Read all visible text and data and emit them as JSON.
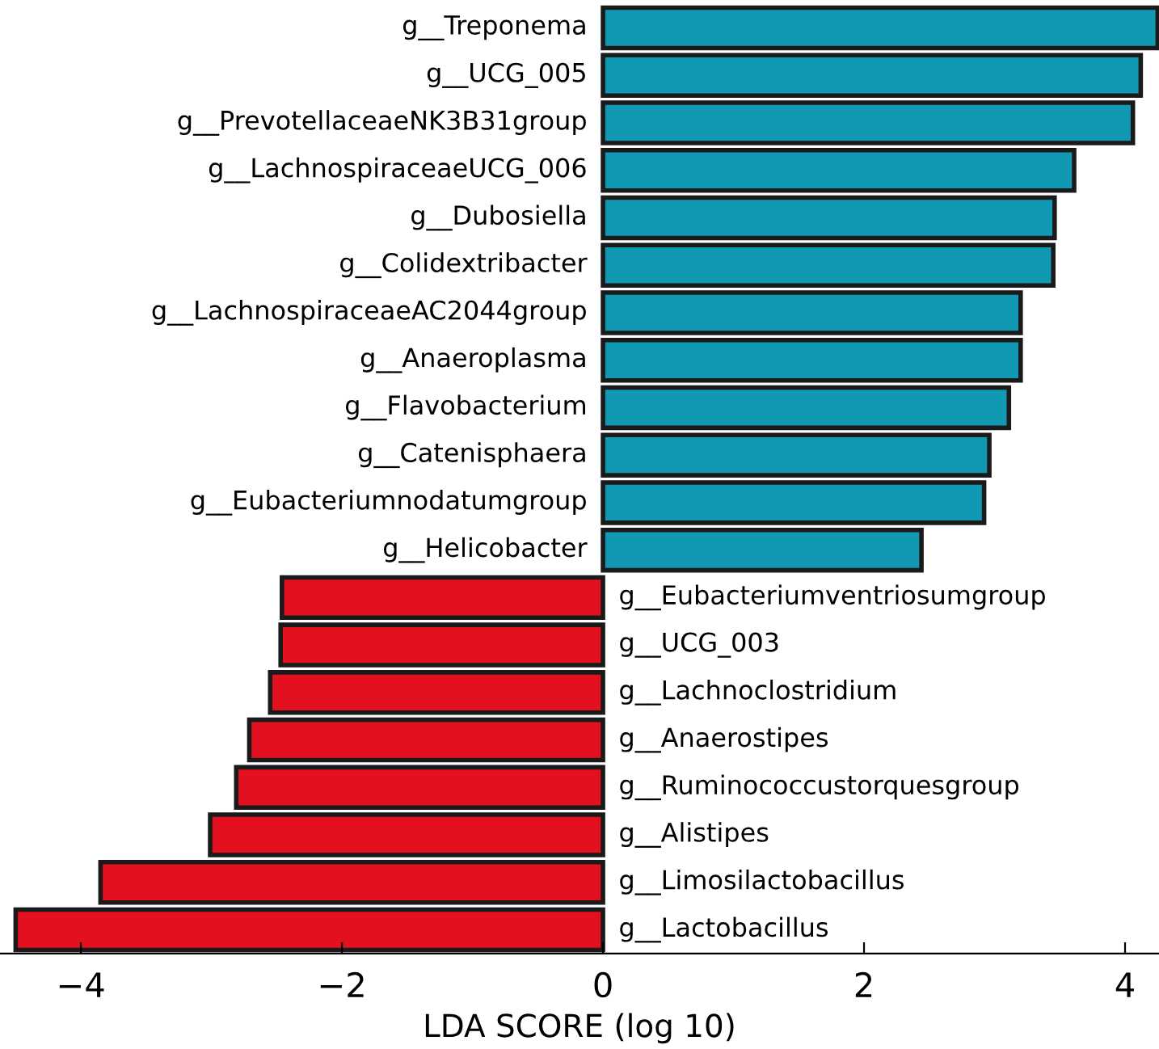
{
  "chart_data": {
    "type": "bar",
    "orientation": "horizontal",
    "xlabel": "LDA SCORE (log 10)",
    "categories": [
      "g__Treponema",
      "g__UCG_005",
      "g__PrevotellaceaeNK3B31group",
      "g__LachnospiraceaeUCG_006",
      "g__Dubosiella",
      "g__Colidextribacter",
      "g__LachnospiraceaeAC2044group",
      "g__Anaeroplasma",
      "g__Flavobacterium",
      "g__Catenisphaera",
      "g__Eubacteriumnodatumgroup",
      "g__Helicobacter",
      "g__Eubacteriumventriosumgroup",
      "g__UCG_003",
      "g__Lachnoclostridium",
      "g__Anaerostipes",
      "g__Ruminococcustorquesgroup",
      "g__Alistipes",
      "g__Limosilactobacillus",
      "g__Lactobacillus"
    ],
    "values": [
      4.25,
      4.12,
      4.06,
      3.61,
      3.46,
      3.45,
      3.2,
      3.2,
      3.11,
      2.96,
      2.92,
      2.44,
      -2.46,
      -2.47,
      -2.55,
      -2.71,
      -2.81,
      -3.01,
      -3.85,
      -4.5
    ],
    "colors": [
      "#1199b4",
      "#1199b4",
      "#1199b4",
      "#1199b4",
      "#1199b4",
      "#1199b4",
      "#1199b4",
      "#1199b4",
      "#1199b4",
      "#1199b4",
      "#1199b4",
      "#1199b4",
      "#e31020",
      "#e31020",
      "#e31020",
      "#e31020",
      "#e31020",
      "#e31020",
      "#e31020",
      "#e31020"
    ],
    "xlim": [
      -4.62,
      4.26
    ],
    "xticks": [
      {
        "value": -4,
        "label": "−4"
      },
      {
        "value": -2,
        "label": "−2"
      },
      0,
      2,
      4
    ],
    "tick_labels": "x",
    "grid": false,
    "legend": false
  }
}
